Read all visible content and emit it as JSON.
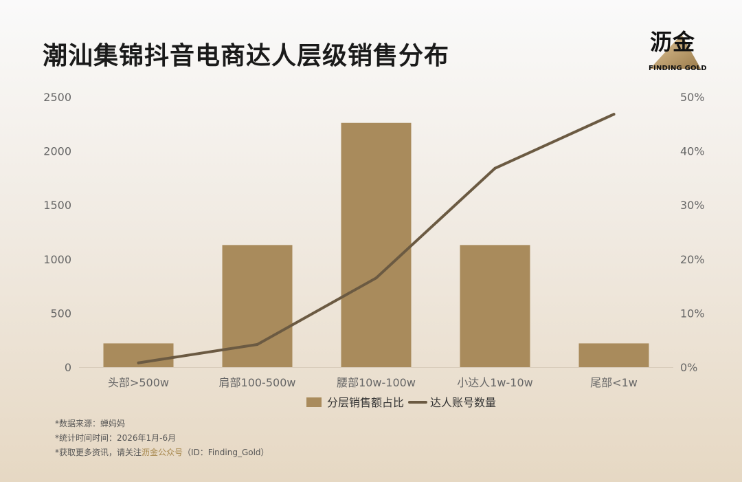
{
  "title": "潮汕集锦抖音电商达人层级销售分布",
  "logo": {
    "text": "沥金",
    "sub": "FINDING GOLD",
    "colors": {
      "light": "#e3c79a",
      "dark": "#9a7b4a"
    }
  },
  "chart_data": {
    "type": "bar",
    "categories": [
      "头部>500w",
      "肩部100-500w",
      "腰部10w-100w",
      "小达人1w-10w",
      "尾部<1w"
    ],
    "series": [
      {
        "name": "分层销售额占比",
        "type": "bar",
        "axis": "left",
        "values": [
          220,
          1130,
          2260,
          1130,
          220
        ],
        "color": "#a98b5c"
      },
      {
        "name": "达人账号数量",
        "type": "line",
        "axis": "right",
        "values": [
          0.8,
          4.2,
          16.5,
          36.8,
          46.8
        ],
        "color": "#6b5a42"
      }
    ],
    "y_left": {
      "min": 0,
      "max": 2500,
      "ticks": [
        "0",
        "500",
        "1000",
        "1500",
        "2000",
        "2500"
      ]
    },
    "y_right": {
      "min": 0,
      "max": 50,
      "ticks": [
        "0%",
        "10%",
        "20%",
        "30%",
        "40%",
        "50%"
      ]
    },
    "grid": false,
    "legend_position": "bottom"
  },
  "footnotes": {
    "source": "*数据来源：蝉妈妈",
    "period": "*统计时间时间：2026年1月-6月",
    "more_prefix": "*获取更多资讯，请关注",
    "more_highlight": "沥金公众号",
    "more_suffix": "（ID：Finding_Gold）"
  }
}
